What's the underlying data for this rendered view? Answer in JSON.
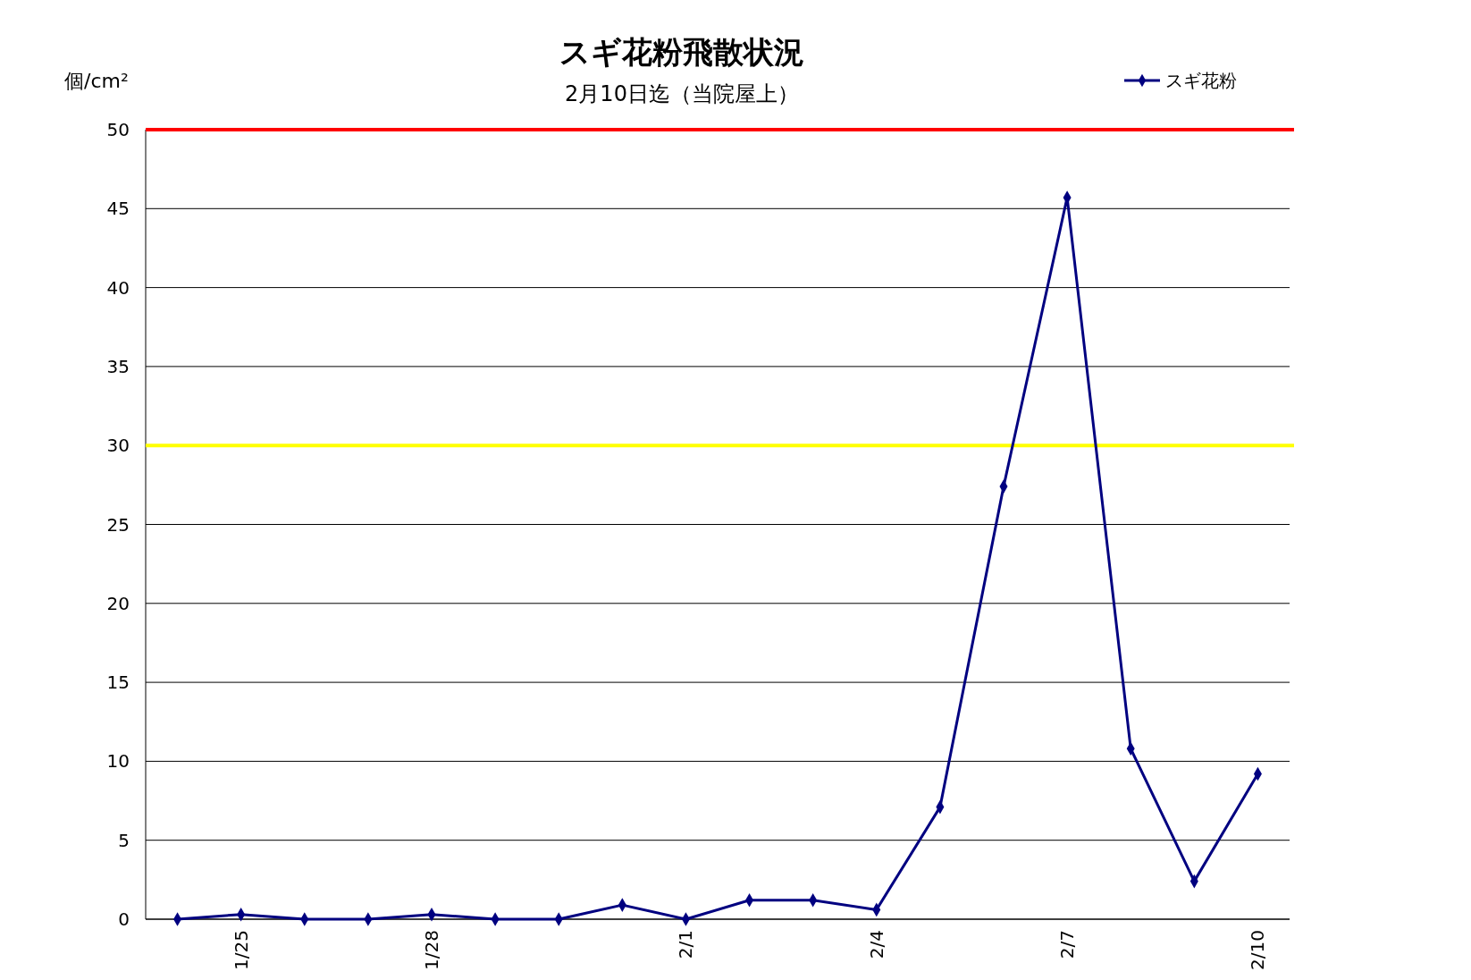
{
  "chart_data": {
    "type": "line",
    "title": "スギ花粉飛散状況",
    "subtitle": "2月10日迄（当院屋上）",
    "ylabel": "個/cm²",
    "categories": [
      null,
      "1/25",
      null,
      null,
      "1/28",
      null,
      null,
      null,
      "2/1",
      null,
      null,
      "2/4",
      null,
      null,
      "2/7",
      null,
      null,
      "2/10"
    ],
    "series": [
      {
        "name": "スギ花粉",
        "color": "#000080",
        "values": [
          0,
          0.3,
          0,
          0,
          0.3,
          0,
          0,
          0.9,
          0,
          1.2,
          1.2,
          0.6,
          7.1,
          27.4,
          45.7,
          10.8,
          2.4,
          9.2
        ]
      }
    ],
    "ylim": [
      0,
      50
    ],
    "yticks": [
      0,
      5,
      10,
      15,
      20,
      25,
      30,
      35,
      40,
      45,
      50
    ],
    "grid": "y",
    "legend": "top right",
    "marker": "diamond",
    "line_style": "solid",
    "ref_lines": [
      {
        "axis": "y",
        "value": 50,
        "color": "#ff0000"
      },
      {
        "axis": "y",
        "value": 30,
        "color": "#ffff00"
      }
    ]
  }
}
